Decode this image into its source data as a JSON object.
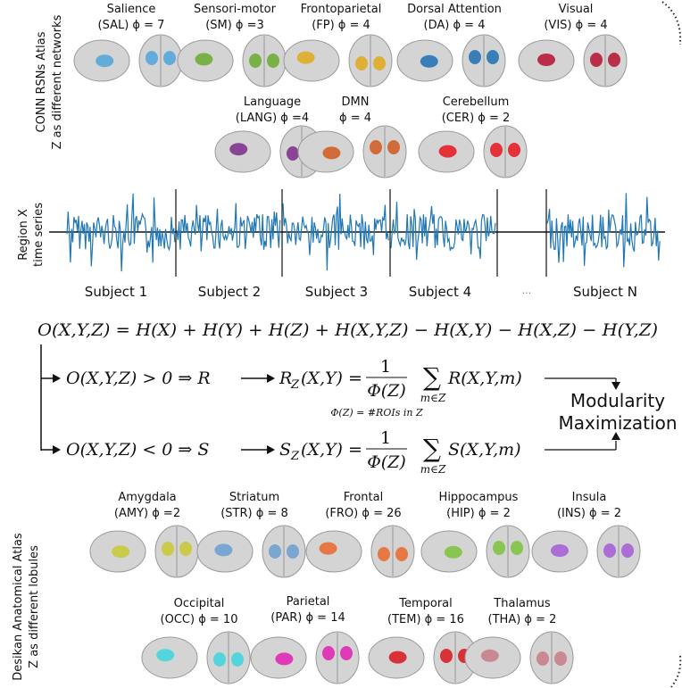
{
  "conn_atlas": {
    "title": "CONN RSNs Atlas",
    "subtitle": "Z as different networks",
    "networks": [
      {
        "name": "Salience",
        "label": "(SAL) ϕ = 7",
        "color": "#4fa3d8"
      },
      {
        "name": "Sensori-motor",
        "label": "(SM) ϕ =3",
        "color": "#6aa92f"
      },
      {
        "name": "Frontoparietal",
        "label": "(FP) ϕ = 4",
        "color": "#e0a91c"
      },
      {
        "name": "Dorsal Attention",
        "label": "(DA) ϕ = 4",
        "color": "#1f6fb4"
      },
      {
        "name": "Visual",
        "label": "(VIS) ϕ = 4",
        "color": "#b3122e"
      },
      {
        "name": "Language",
        "label": "(LANG) ϕ =4",
        "color": "#7b2a8c"
      },
      {
        "name": "DMN",
        "label": "ϕ = 4",
        "color": "#d0581e"
      },
      {
        "name": "Cerebellum",
        "label": "(CER) ϕ = 2",
        "color": "#e8141c"
      }
    ]
  },
  "time_series": {
    "label": "Region X",
    "sublabel": "time series",
    "subjects": [
      "Subject 1",
      "Subject 2",
      "Subject 3",
      "Subject 4",
      "···",
      "Subject N"
    ]
  },
  "equations": {
    "main": "O(X,Y,Z) = H(X) + H(Y) + H(Z) + H(X,Y,Z) − H(X,Y) − H(X,Z) − H(Y,Z)",
    "redundancy": {
      "condition": "O(X,Y,Z) > 0 ⇒ R",
      "lhs": "R",
      "lhs_sub": "Z",
      "lhs_args": "(X,Y) =",
      "numerator": "1",
      "denominator": "Φ(Z)",
      "sum": "∑",
      "sum_sub": "m∈Z",
      "term": "R(X,Y,m)"
    },
    "phi_definition": "Φ(Z) = #ROIs in Z",
    "synergy": {
      "condition": "O(X,Y,Z) < 0 ⇒ S",
      "lhs": "S",
      "lhs_sub": "Z",
      "lhs_args": "(X,Y) =",
      "numerator": "1",
      "denominator": "Φ(Z)",
      "sum": "∑",
      "sum_sub": "m∈Z",
      "term": "S(X,Y,m)"
    },
    "target": [
      "Modularity",
      "Maximization"
    ]
  },
  "desikan_atlas": {
    "title": "Desikan Anatomical Atlas",
    "subtitle": "Z as different lobules",
    "lobules": [
      {
        "name": "Amygdala",
        "label": "(AMY) ϕ =2",
        "color": "#c8c832"
      },
      {
        "name": "Striatum",
        "label": "(STR) ϕ = 8",
        "color": "#6a9fd0"
      },
      {
        "name": "Frontal",
        "label": "(FRO) ϕ = 26",
        "color": "#e8672a"
      },
      {
        "name": "Hippocampus",
        "label": "(HIP) ϕ = 2",
        "color": "#7ac23a"
      },
      {
        "name": "Insula",
        "label": "(INS) ϕ = 2",
        "color": "#a55ad6"
      },
      {
        "name": "Occipital",
        "label": "(OCC) ϕ = 10",
        "color": "#3cd6dc"
      },
      {
        "name": "Parietal",
        "label": "(PAR) ϕ = 14",
        "color": "#e020b4"
      },
      {
        "name": "Temporal",
        "label": "(TEM) ϕ = 16",
        "color": "#d8141c"
      },
      {
        "name": "Thalamus",
        "label": "(THA) ϕ = 2",
        "color": "#c87a86"
      }
    ]
  }
}
